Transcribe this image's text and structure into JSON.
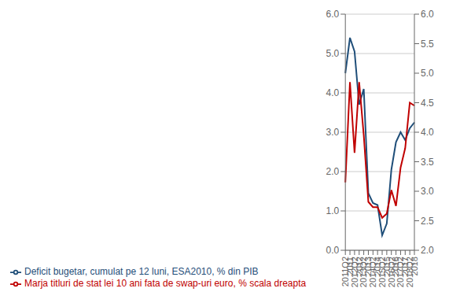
{
  "chart_data": {
    "type": "line",
    "categories": [
      "2011Q2",
      "2011",
      "2012Q2",
      "2012",
      "2013Q2",
      "2013",
      "2014Q2",
      "2014",
      "2015Q2",
      "2015",
      "2016Q2",
      "2016",
      "2017Q2",
      "2017",
      "2018Q2",
      "2018"
    ],
    "series": [
      {
        "name": "Deficit bugetar, cumulat pe 12 luni, ESA2010, % din PIB",
        "color": "#1F4E79",
        "values": [
          4.5,
          5.4,
          5.05,
          3.7,
          4.1,
          1.45,
          1.2,
          1.15,
          0.38,
          0.68,
          2.05,
          2.75,
          3.0,
          2.8,
          3.1,
          3.25
        ]
      },
      {
        "name": "Marja titluri de stat lei 10 ani fata de swap-uri euro, % scala dreapta",
        "color": "#C00000",
        "axis": "y2",
        "values": [
          3.15,
          4.85,
          3.65,
          4.85,
          3.95,
          2.82,
          2.73,
          2.73,
          2.55,
          2.62,
          3.02,
          2.75,
          3.4,
          3.73,
          4.5,
          4.45
        ]
      }
    ],
    "ylim": [
      0.0,
      6.0
    ],
    "yticks": [
      {
        "value": 0,
        "label": "0.0"
      },
      {
        "value": 1,
        "label": "1.0"
      },
      {
        "value": 2,
        "label": "2.0"
      },
      {
        "value": 3,
        "label": "3.0"
      },
      {
        "value": 4,
        "label": "4.0"
      },
      {
        "value": 5,
        "label": "5.0"
      },
      {
        "value": 6,
        "label": "6.0"
      }
    ],
    "y2lim": [
      2.0,
      6.0
    ],
    "y2ticks": [
      {
        "value": 2,
        "label": "2.0"
      },
      2.5,
      {
        "value": 3,
        "label": "3.0"
      },
      3.5,
      {
        "value": 4,
        "label": "4.0"
      },
      4.5,
      {
        "value": 5,
        "label": "5.0"
      },
      5.5,
      {
        "value": 6,
        "label": "6.0"
      }
    ],
    "grid": true,
    "legend": "bottom"
  }
}
